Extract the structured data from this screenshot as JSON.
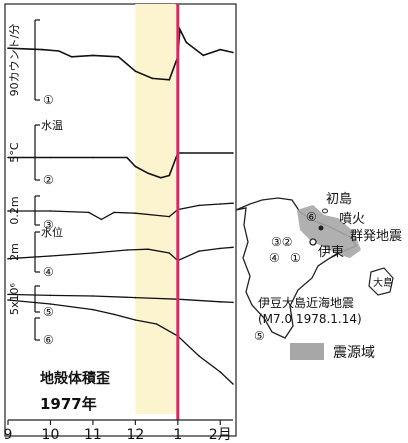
{
  "chart_data": {
    "type": "line",
    "title": "",
    "x_axis": {
      "ticks": [
        "9",
        "10",
        "11",
        "12",
        "1",
        "2月"
      ],
      "year_label": "1977年"
    },
    "highlight_band": {
      "from_month": 12.0,
      "to_month": 12.95,
      "color": "#fbf4cf"
    },
    "marker_line": {
      "at_month": 13.0,
      "color": "#e0245e"
    },
    "panels": [
      {
        "id": "1",
        "circle": "①",
        "y_scale": "90カウント/分",
        "name": "",
        "kind": "radon",
        "series": {
          "x": [
            9.0,
            9.8,
            10.2,
            10.5,
            11.0,
            11.6,
            12.0,
            12.4,
            12.8,
            13.0,
            13.05,
            13.2,
            13.6,
            14.0,
            14.3
          ],
          "y": [
            0.72,
            0.7,
            0.68,
            0.6,
            0.62,
            0.6,
            0.4,
            0.3,
            0.28,
            0.6,
            0.98,
            0.8,
            0.62,
            0.7,
            0.66
          ]
        }
      },
      {
        "id": "2",
        "circle": "②",
        "y_scale": "5°C",
        "name": "水温",
        "kind": "water-temp",
        "series": {
          "x": [
            9.0,
            10.0,
            11.0,
            11.8,
            12.0,
            12.3,
            12.6,
            12.8,
            13.0,
            13.1,
            14.3
          ],
          "y": [
            0.5,
            0.5,
            0.5,
            0.5,
            0.3,
            0.15,
            0.05,
            0.1,
            0.6,
            0.6,
            0.6
          ]
        }
      },
      {
        "id": "3",
        "circle": "③",
        "y_scale": "0.2m",
        "name": "",
        "kind": "strain-a",
        "series": {
          "x": [
            9.0,
            10.0,
            10.9,
            11.2,
            11.5,
            12.0,
            12.8,
            13.0,
            13.5,
            14.0,
            14.3
          ],
          "y": [
            0.5,
            0.5,
            0.45,
            0.2,
            0.45,
            0.42,
            0.3,
            0.55,
            0.7,
            0.75,
            0.78
          ]
        }
      },
      {
        "id": "4",
        "circle": "④",
        "y_scale": "2m",
        "name": "水位",
        "kind": "water-level",
        "series": {
          "x": [
            9.0,
            10.0,
            11.0,
            11.8,
            12.3,
            12.8,
            13.0,
            13.5,
            14.0,
            14.3
          ],
          "y": [
            0.35,
            0.42,
            0.5,
            0.58,
            0.6,
            0.5,
            0.3,
            0.55,
            0.62,
            0.65
          ]
        }
      },
      {
        "id": "5",
        "circle": "⑤",
        "y_scale": "5x10⁶",
        "name": "",
        "kind": "strain-5",
        "series": {
          "x": [
            9.0,
            10.0,
            11.0,
            12.0,
            13.0,
            14.0,
            14.3
          ],
          "y": [
            0.55,
            0.52,
            0.5,
            0.45,
            0.4,
            0.32,
            0.3
          ]
        }
      },
      {
        "id": "6",
        "circle": "⑥",
        "y_scale": "",
        "name": "地殻体積歪",
        "kind": "volumetric-strain",
        "series": {
          "x": [
            9.0,
            10.0,
            11.0,
            11.5,
            12.0,
            12.5,
            13.0,
            13.5,
            14.0,
            14.3
          ],
          "y": [
            0.5,
            0.45,
            0.38,
            0.32,
            0.25,
            0.2,
            0.05,
            -0.2,
            -0.4,
            -0.55
          ]
        }
      }
    ],
    "map": {
      "labels": {
        "hatsushima": "初島",
        "eruption": "噴火",
        "swarm": "群発地震",
        "ito": "伊東",
        "oshima": "大島",
        "quake": "伊豆大島近海地震",
        "quake_detail": "(M7.0 1978.1.14)",
        "legend": "震源域"
      },
      "station_marks": [
        "③②",
        "④",
        "①",
        "⑥",
        "⑤"
      ]
    }
  }
}
